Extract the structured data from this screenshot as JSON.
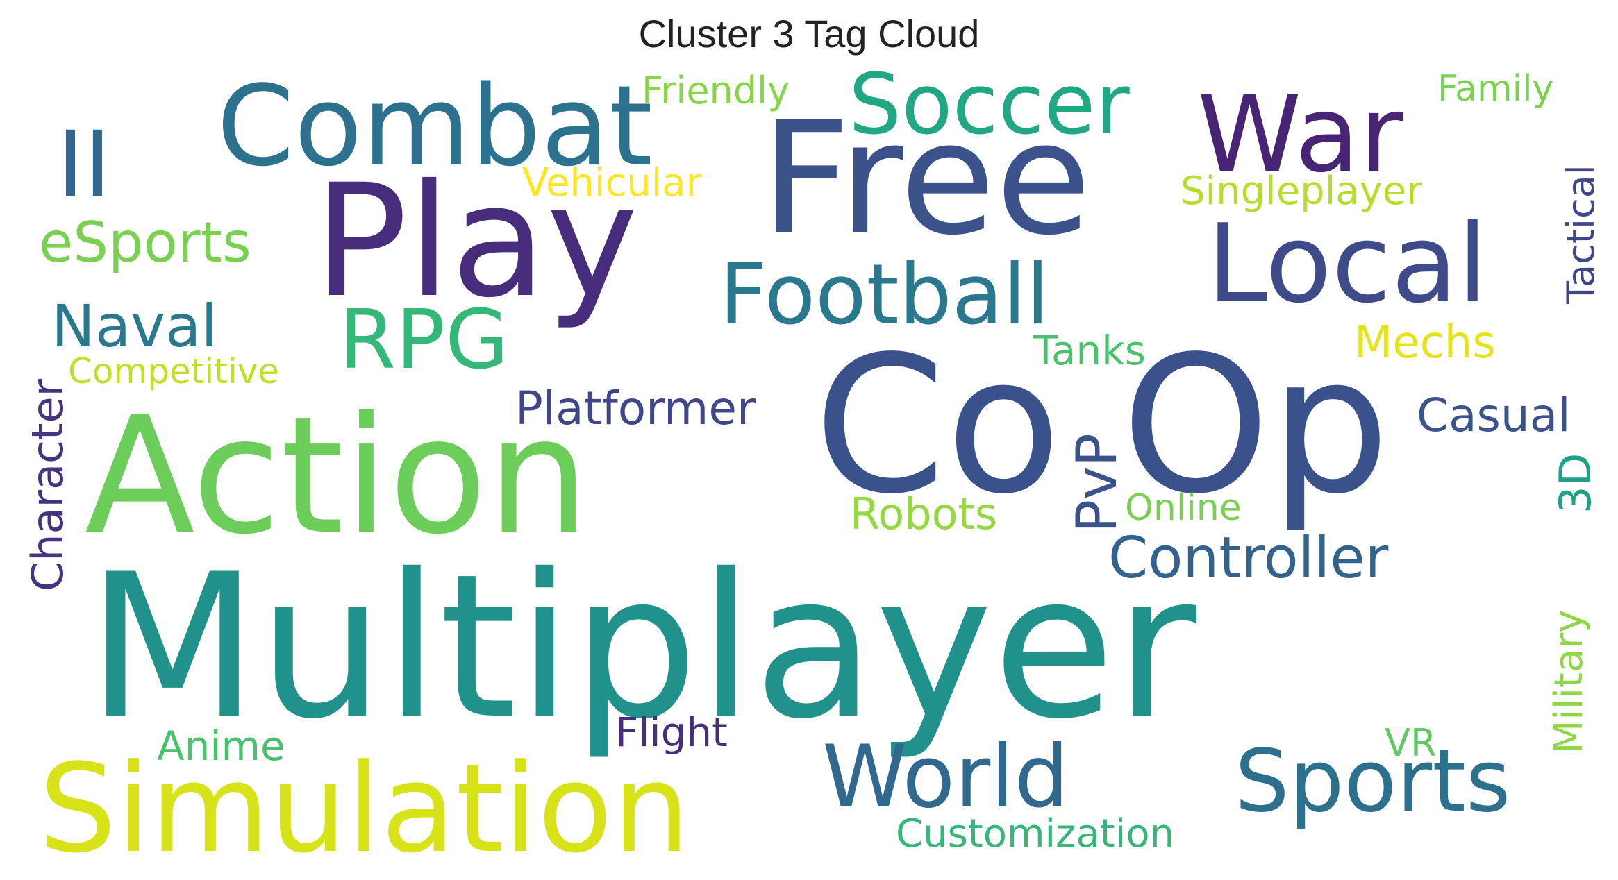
{
  "title": "Cluster 3 Tag Cloud",
  "words": [
    {
      "text": "Multiplayer",
      "color": "#21918c"
    },
    {
      "text": "Co Op",
      "color": "#3b518b"
    },
    {
      "text": "Action",
      "color": "#6ccd5a"
    },
    {
      "text": "Play",
      "color": "#472d7b"
    },
    {
      "text": "Free",
      "color": "#3b528b"
    },
    {
      "text": "Simulation",
      "color": "#d8e219"
    },
    {
      "text": "Combat",
      "color": "#2c728e"
    },
    {
      "text": "Local",
      "color": "#3e4a89"
    },
    {
      "text": "War",
      "color": "#482475"
    },
    {
      "text": "Soccer",
      "color": "#22a785"
    },
    {
      "text": "Football",
      "color": "#2a788e"
    },
    {
      "text": "World",
      "color": "#31688e"
    },
    {
      "text": "Sports",
      "color": "#2d708e"
    },
    {
      "text": "II",
      "color": "#31688e"
    },
    {
      "text": "RPG",
      "color": "#35b779"
    },
    {
      "text": "eSports",
      "color": "#7ad151"
    },
    {
      "text": "Naval",
      "color": "#2a788e"
    },
    {
      "text": "Controller",
      "color": "#33638d"
    },
    {
      "text": "Platformer",
      "color": "#3f4788"
    },
    {
      "text": "Casual",
      "color": "#3b528b"
    },
    {
      "text": "Customization",
      "color": "#35b779"
    },
    {
      "text": "Mechs",
      "color": "#e5e419"
    },
    {
      "text": "Robots",
      "color": "#95d840"
    },
    {
      "text": "Singleplayer",
      "color": "#b5de2b"
    },
    {
      "text": "Vehicular",
      "color": "#fde725"
    },
    {
      "text": "Friendly",
      "color": "#86d549"
    },
    {
      "text": "Family",
      "color": "#7ad151"
    },
    {
      "text": "Tanks",
      "color": "#4ac16d"
    },
    {
      "text": "Competitive",
      "color": "#c2df23"
    },
    {
      "text": "Anime",
      "color": "#4ac16d"
    },
    {
      "text": "Flight",
      "color": "#472d7b"
    },
    {
      "text": "Online",
      "color": "#7ad151"
    },
    {
      "text": "VR",
      "color": "#5ec962"
    },
    {
      "text": "PvP",
      "color": "#3b528b"
    },
    {
      "text": "Character",
      "color": "#46337e"
    },
    {
      "text": "Tactical",
      "color": "#404688"
    },
    {
      "text": "Military",
      "color": "#8fd744"
    },
    {
      "text": "3D",
      "color": "#1fa187"
    }
  ]
}
